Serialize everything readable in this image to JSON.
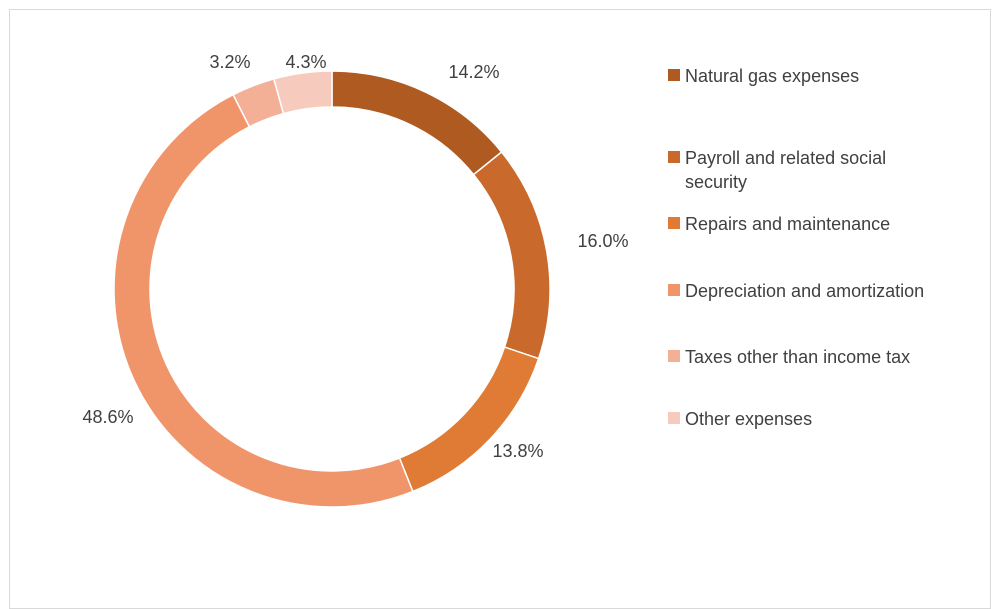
{
  "chart_data": {
    "type": "pie",
    "title": "",
    "categories": [
      "Natural gas expenses",
      "Payroll and related social security",
      "Repairs and maintenance",
      "Depreciation and amortization",
      "Taxes other than income tax",
      "Other expenses"
    ],
    "values": [
      14.2,
      16.0,
      13.8,
      48.6,
      3.2,
      4.3
    ],
    "labels": [
      "14.2%",
      "16.0%",
      "13.8%",
      "48.6%",
      "3.2%",
      "4.3%"
    ],
    "colors": [
      "#ae5a21",
      "#c9692c",
      "#e07b35",
      "#f0956a",
      "#f4b097",
      "#f6cbbd"
    ],
    "legend_position": "right",
    "style": "doughnut"
  }
}
